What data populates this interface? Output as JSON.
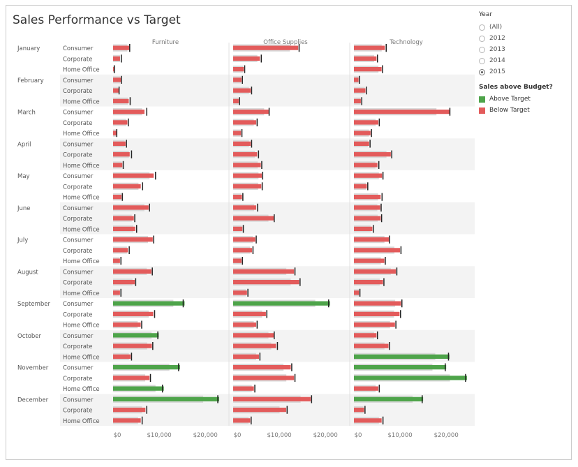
{
  "title": "Sales Performance vs Target",
  "legend": {
    "year_title": "Year",
    "year_options": [
      "(All)",
      "2012",
      "2013",
      "2014",
      "2015"
    ],
    "selected_year": "2015",
    "color_title": "Sales above Budget?",
    "color_items": [
      {
        "label": "Above Target",
        "color": "#4ea44a"
      },
      {
        "label": "Below Target",
        "color": "#e35b5b"
      }
    ]
  },
  "chart_data": {
    "type": "bar",
    "subtype": "bullet",
    "title": "Sales Performance vs Target",
    "columns": [
      "Furniture",
      "Office Supplies",
      "Technology"
    ],
    "months": [
      "January",
      "February",
      "March",
      "April",
      "May",
      "June",
      "July",
      "August",
      "September",
      "October",
      "November",
      "December"
    ],
    "segments": [
      "Consumer",
      "Corporate",
      "Home Office"
    ],
    "x_ticks": [
      "$0",
      "$10,000",
      "$20,000"
    ],
    "xlim": [
      0,
      23000
    ],
    "colors": {
      "above": "#4ea44a",
      "below": "#e35b5b",
      "target_band": "#d9d9d9",
      "target_line": "#222222"
    },
    "sales": [
      [
        [
          3500,
          1500,
          200
        ],
        [
          1700,
          1200,
          3400
        ],
        [
          6800,
          3100,
          700
        ],
        [
          2700,
          3600,
          2000
        ],
        [
          8800,
          6000,
          1800
        ],
        [
          7700,
          4500,
          4800
        ],
        [
          8600,
          3200,
          1500
        ],
        [
          8300,
          4700,
          1500
        ],
        [
          15500,
          8700,
          6000
        ],
        [
          9900,
          8400,
          3800
        ],
        [
          14500,
          7900,
          11000
        ],
        [
          23000,
          7000,
          6000
        ]
      ],
      [
        [
          14100,
          5800,
          2300
        ],
        [
          1800,
          3800,
          1200
        ],
        [
          7700,
          5000,
          1700
        ],
        [
          3800,
          5200,
          6000
        ],
        [
          6200,
          6100,
          1900
        ],
        [
          5000,
          8800,
          2000
        ],
        [
          4800,
          4100,
          1800
        ],
        [
          13200,
          14300,
          3000
        ],
        [
          21000,
          7100,
          5000
        ],
        [
          8800,
          9300,
          5600
        ],
        [
          12500,
          13200,
          4500
        ],
        [
          16800,
          11500,
          3700
        ]
      ],
      [
        [
          6700,
          4900,
          6000
        ],
        [
          1000,
          2500,
          1500
        ],
        [
          20700,
          5300,
          3600
        ],
        [
          3300,
          8000,
          5100
        ],
        [
          6100,
          2800,
          5800
        ],
        [
          5700,
          5800,
          4000
        ],
        [
          7600,
          10000,
          6600
        ],
        [
          9100,
          6300,
          1100
        ],
        [
          10200,
          9900,
          8900
        ],
        [
          4900,
          7500,
          20700
        ],
        [
          20000,
          24500,
          5300
        ],
        [
          15000,
          2200,
          6000
        ]
      ]
    ],
    "targets": [
      [
        [
          3600,
          1800,
          300
        ],
        [
          1800,
          1300,
          3700
        ],
        [
          7300,
          3300,
          800
        ],
        [
          2900,
          4000,
          2200
        ],
        [
          9200,
          6400,
          2000
        ],
        [
          7900,
          4700,
          5100
        ],
        [
          8800,
          3500,
          1700
        ],
        [
          8500,
          4900,
          1700
        ],
        [
          15200,
          9000,
          6200
        ],
        [
          9700,
          8600,
          4000
        ],
        [
          14200,
          8100,
          10700
        ],
        [
          22700,
          7300,
          6300
        ]
      ],
      [
        [
          14300,
          6100,
          2500
        ],
        [
          2000,
          4000,
          1400
        ],
        [
          7800,
          5200,
          1900
        ],
        [
          4000,
          5500,
          6200
        ],
        [
          6400,
          6300,
          2100
        ],
        [
          5300,
          8900,
          2200
        ],
        [
          5000,
          4300,
          2000
        ],
        [
          13400,
          14500,
          3200
        ],
        [
          20700,
          7300,
          5200
        ],
        [
          8900,
          9600,
          5800
        ],
        [
          12700,
          13400,
          4700
        ],
        [
          17000,
          11700,
          3900
        ]
      ],
      [
        [
          7000,
          5100,
          6200
        ],
        [
          1200,
          2700,
          1700
        ],
        [
          20800,
          5500,
          3800
        ],
        [
          3500,
          8200,
          5400
        ],
        [
          6300,
          3000,
          6100
        ],
        [
          5900,
          6000,
          4200
        ],
        [
          7700,
          10200,
          6800
        ],
        [
          9300,
          6500,
          1300
        ],
        [
          10400,
          10100,
          9100
        ],
        [
          5100,
          7700,
          20500
        ],
        [
          19800,
          24200,
          5500
        ],
        [
          14800,
          2400,
          6300
        ]
      ]
    ]
  }
}
